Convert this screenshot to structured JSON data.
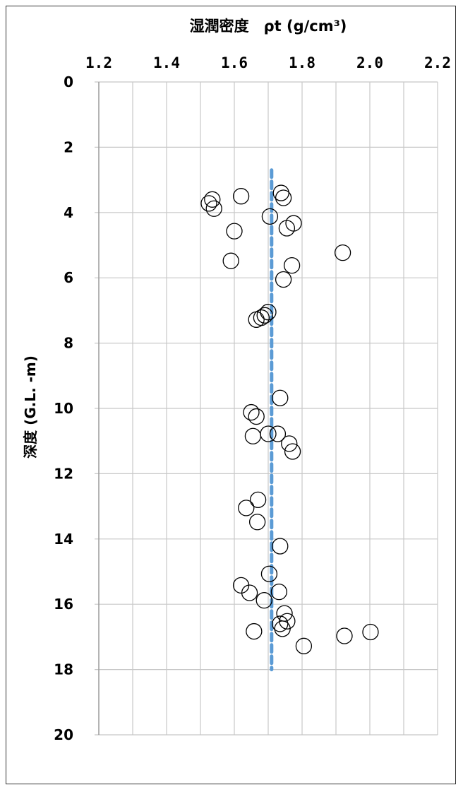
{
  "chart_data": {
    "type": "scatter",
    "title": "湿潤密度　ρt (g/cm³)",
    "ylabel": "深度 (G.L. -m)",
    "xlabel": "",
    "xlim": [
      1.2,
      2.2
    ],
    "ylim": [
      0,
      20
    ],
    "y_inverted": true,
    "x_axis_position": "top",
    "grid": true,
    "x_ticks": [
      "1.2",
      "1.4",
      "1.6",
      "1.8",
      "2.0",
      "2.2"
    ],
    "y_ticks": [
      "0",
      "2",
      "4",
      "6",
      "8",
      "10",
      "12",
      "14",
      "16",
      "18",
      "20"
    ],
    "marker": "open-circle",
    "marker_color": "#000000",
    "reference_line": {
      "x": 1.71,
      "y_range": [
        2.7,
        18.0
      ],
      "style": "dashed",
      "color": "#5b9bd5"
    },
    "points": [
      {
        "x": 1.535,
        "y": 3.6
      },
      {
        "x": 1.62,
        "y": 3.5
      },
      {
        "x": 1.738,
        "y": 3.4
      },
      {
        "x": 1.745,
        "y": 3.55
      },
      {
        "x": 1.525,
        "y": 3.72
      },
      {
        "x": 1.54,
        "y": 3.88
      },
      {
        "x": 1.705,
        "y": 4.12
      },
      {
        "x": 1.775,
        "y": 4.33
      },
      {
        "x": 1.755,
        "y": 4.48
      },
      {
        "x": 1.6,
        "y": 4.57
      },
      {
        "x": 1.92,
        "y": 5.23
      },
      {
        "x": 1.59,
        "y": 5.48
      },
      {
        "x": 1.77,
        "y": 5.62
      },
      {
        "x": 1.745,
        "y": 6.05
      },
      {
        "x": 1.7,
        "y": 7.05
      },
      {
        "x": 1.69,
        "y": 7.15
      },
      {
        "x": 1.68,
        "y": 7.22
      },
      {
        "x": 1.665,
        "y": 7.28
      },
      {
        "x": 1.735,
        "y": 9.68
      },
      {
        "x": 1.65,
        "y": 10.12
      },
      {
        "x": 1.665,
        "y": 10.25
      },
      {
        "x": 1.7,
        "y": 10.78
      },
      {
        "x": 1.728,
        "y": 10.78
      },
      {
        "x": 1.655,
        "y": 10.85
      },
      {
        "x": 1.762,
        "y": 11.08
      },
      {
        "x": 1.772,
        "y": 11.32
      },
      {
        "x": 1.67,
        "y": 12.8
      },
      {
        "x": 1.635,
        "y": 13.05
      },
      {
        "x": 1.668,
        "y": 13.48
      },
      {
        "x": 1.735,
        "y": 14.22
      },
      {
        "x": 1.703,
        "y": 15.07
      },
      {
        "x": 1.62,
        "y": 15.42
      },
      {
        "x": 1.645,
        "y": 15.65
      },
      {
        "x": 1.732,
        "y": 15.62
      },
      {
        "x": 1.688,
        "y": 15.88
      },
      {
        "x": 1.748,
        "y": 16.28
      },
      {
        "x": 1.756,
        "y": 16.52
      },
      {
        "x": 1.735,
        "y": 16.6
      },
      {
        "x": 1.742,
        "y": 16.75
      },
      {
        "x": 1.658,
        "y": 16.83
      },
      {
        "x": 2.002,
        "y": 16.85
      },
      {
        "x": 1.925,
        "y": 16.97
      },
      {
        "x": 1.805,
        "y": 17.28
      }
    ]
  }
}
